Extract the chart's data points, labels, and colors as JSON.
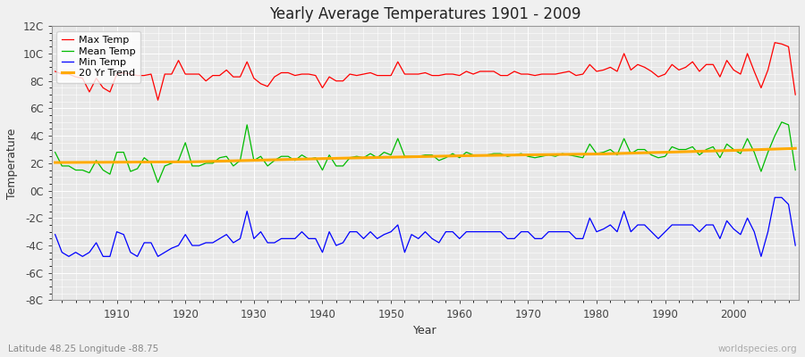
{
  "title": "Yearly Average Temperatures 1901 - 2009",
  "xlabel": "Year",
  "ylabel": "Temperature",
  "lat_lon_label": "Latitude 48.25 Longitude -88.75",
  "watermark": "worldspecies.org",
  "year_start": 1901,
  "year_end": 2009,
  "background_color": "#f0f0f0",
  "plot_bg_color": "#e8e8e8",
  "grid_color": "#ffffff",
  "ylim": [
    -8,
    12
  ],
  "yticks": [
    -8,
    -6,
    -4,
    -2,
    0,
    2,
    4,
    6,
    8,
    10,
    12
  ],
  "ytick_labels": [
    "-8C",
    "-6C",
    "-4C",
    "-2C",
    "0C",
    "2C",
    "4C",
    "6C",
    "8C",
    "10C",
    "12C"
  ],
  "max_temp_color": "#ff0000",
  "mean_temp_color": "#00bb00",
  "min_temp_color": "#0000ff",
  "trend_color": "#ffaa00",
  "legend_labels": [
    "Max Temp",
    "Mean Temp",
    "Min Temp",
    "20 Yr Trend"
  ],
  "max_temp": [
    8.7,
    8.5,
    8.5,
    8.3,
    8.2,
    7.2,
    8.2,
    7.5,
    7.2,
    8.5,
    8.6,
    8.5,
    8.4,
    8.4,
    8.5,
    6.6,
    8.5,
    8.5,
    9.5,
    8.5,
    8.5,
    8.5,
    8.0,
    8.4,
    8.4,
    8.8,
    8.3,
    8.3,
    9.4,
    8.2,
    7.8,
    7.6,
    8.3,
    8.6,
    8.6,
    8.4,
    8.5,
    8.5,
    8.4,
    7.5,
    8.3,
    8.0,
    8.0,
    8.5,
    8.4,
    8.5,
    8.6,
    8.4,
    8.4,
    8.4,
    9.4,
    8.5,
    8.5,
    8.5,
    8.6,
    8.4,
    8.4,
    8.5,
    8.5,
    8.4,
    8.7,
    8.5,
    8.7,
    8.7,
    8.7,
    8.4,
    8.4,
    8.7,
    8.5,
    8.5,
    8.4,
    8.5,
    8.5,
    8.5,
    8.6,
    8.7,
    8.4,
    8.5,
    9.2,
    8.7,
    8.8,
    9.0,
    8.7,
    10.0,
    8.8,
    9.2,
    9.0,
    8.7,
    8.3,
    8.5,
    9.2,
    8.8,
    9.0,
    9.4,
    8.7,
    9.2,
    9.2,
    8.3,
    9.5,
    8.8,
    8.5,
    10.0,
    8.7,
    7.5,
    8.8,
    10.8,
    10.7,
    10.5,
    7.0
  ],
  "mean_temp": [
    2.8,
    1.8,
    1.8,
    1.5,
    1.5,
    1.3,
    2.2,
    1.5,
    1.2,
    2.8,
    2.8,
    1.4,
    1.6,
    2.4,
    2.0,
    0.6,
    1.8,
    2.0,
    2.2,
    3.5,
    1.8,
    1.8,
    2.0,
    2.0,
    2.4,
    2.5,
    1.8,
    2.2,
    4.8,
    2.2,
    2.5,
    1.8,
    2.2,
    2.5,
    2.5,
    2.2,
    2.6,
    2.3,
    2.4,
    1.5,
    2.6,
    1.8,
    1.8,
    2.4,
    2.5,
    2.4,
    2.7,
    2.4,
    2.8,
    2.6,
    3.8,
    2.5,
    2.5,
    2.5,
    2.6,
    2.6,
    2.2,
    2.4,
    2.7,
    2.4,
    2.8,
    2.6,
    2.6,
    2.6,
    2.7,
    2.7,
    2.5,
    2.6,
    2.7,
    2.5,
    2.4,
    2.5,
    2.6,
    2.5,
    2.7,
    2.6,
    2.5,
    2.4,
    3.4,
    2.7,
    2.8,
    3.0,
    2.6,
    3.8,
    2.7,
    3.0,
    3.0,
    2.6,
    2.4,
    2.5,
    3.2,
    3.0,
    3.0,
    3.2,
    2.6,
    3.0,
    3.2,
    2.4,
    3.4,
    3.0,
    2.7,
    3.8,
    2.8,
    1.4,
    2.8,
    4.0,
    5.0,
    4.8,
    1.5
  ],
  "min_temp": [
    -3.2,
    -4.5,
    -4.8,
    -4.5,
    -4.8,
    -4.5,
    -3.8,
    -4.8,
    -4.8,
    -3.0,
    -3.2,
    -4.5,
    -4.8,
    -3.8,
    -3.8,
    -4.8,
    -4.5,
    -4.2,
    -4.0,
    -3.2,
    -4.0,
    -4.0,
    -3.8,
    -3.8,
    -3.5,
    -3.2,
    -3.8,
    -3.5,
    -1.5,
    -3.5,
    -3.0,
    -3.8,
    -3.8,
    -3.5,
    -3.5,
    -3.5,
    -3.0,
    -3.5,
    -3.5,
    -4.5,
    -3.0,
    -4.0,
    -3.8,
    -3.0,
    -3.0,
    -3.5,
    -3.0,
    -3.5,
    -3.2,
    -3.0,
    -2.5,
    -4.5,
    -3.2,
    -3.5,
    -3.0,
    -3.5,
    -3.8,
    -3.0,
    -3.0,
    -3.5,
    -3.0,
    -3.0,
    -3.0,
    -3.0,
    -3.0,
    -3.0,
    -3.5,
    -3.5,
    -3.0,
    -3.0,
    -3.5,
    -3.5,
    -3.0,
    -3.0,
    -3.0,
    -3.0,
    -3.5,
    -3.5,
    -2.0,
    -3.0,
    -2.8,
    -2.5,
    -3.0,
    -1.5,
    -3.0,
    -2.5,
    -2.5,
    -3.0,
    -3.5,
    -3.0,
    -2.5,
    -2.5,
    -2.5,
    -2.5,
    -3.0,
    -2.5,
    -2.5,
    -3.5,
    -2.2,
    -2.8,
    -3.2,
    -2.0,
    -3.0,
    -4.8,
    -3.0,
    -0.5,
    -0.5,
    -1.0,
    -4.0
  ],
  "trend_x": [
    1901,
    1921,
    1941,
    1961,
    1981,
    2001,
    2009
  ],
  "trend_y": [
    2.05,
    2.1,
    2.35,
    2.55,
    2.68,
    2.95,
    3.08
  ]
}
